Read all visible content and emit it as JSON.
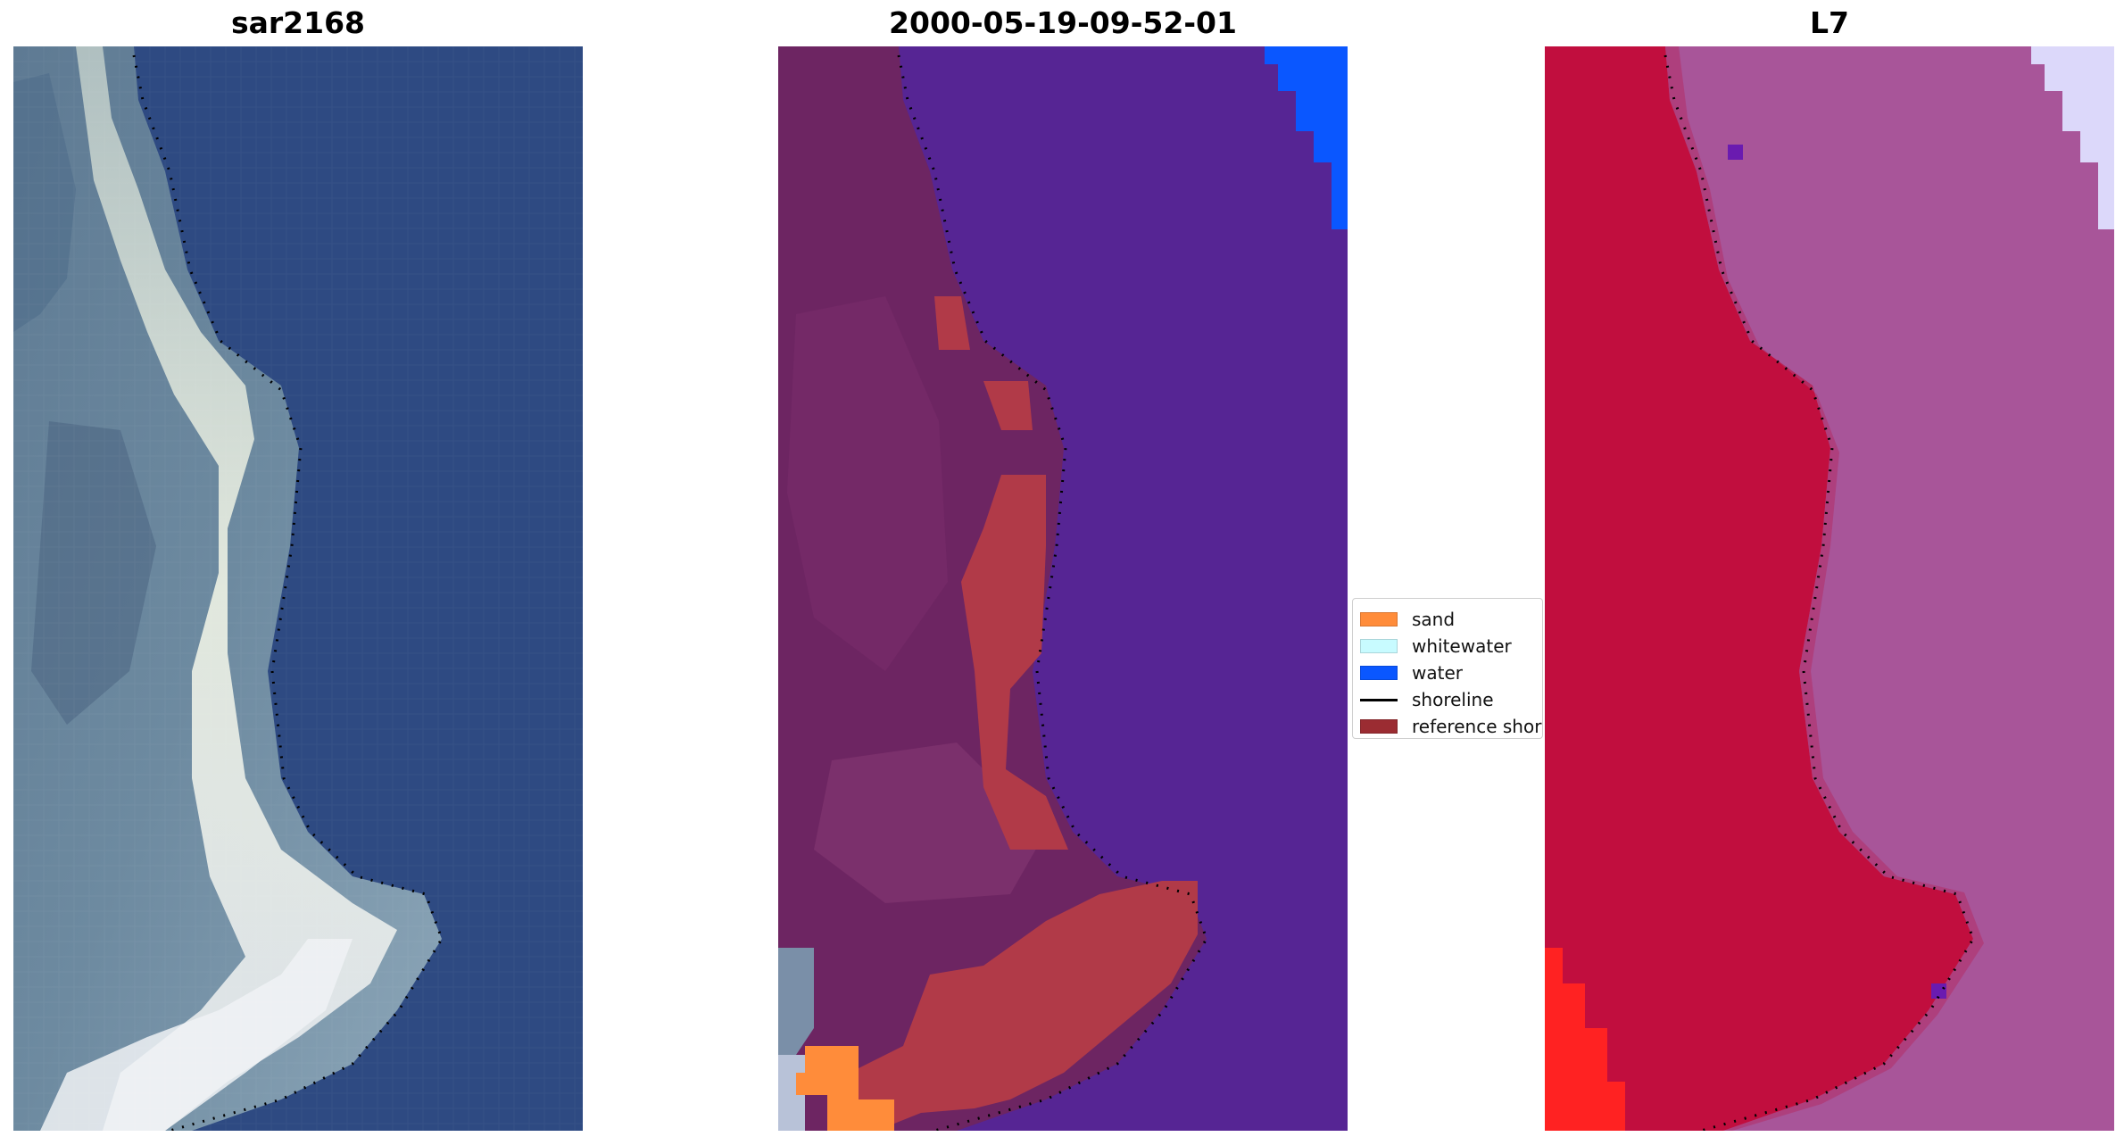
{
  "panels": {
    "left_title": "sar2168",
    "middle_title": "2000-05-19-09-52-01",
    "right_title": "L7"
  },
  "legend": {
    "items": [
      {
        "label": "sand",
        "color": "#ff8c3a",
        "kind": "patch"
      },
      {
        "label": "whitewater",
        "color": "#c8fbff",
        "kind": "patch"
      },
      {
        "label": "water",
        "color": "#0a57ff",
        "kind": "patch"
      },
      {
        "label": "shoreline",
        "color": "#000000",
        "kind": "line"
      },
      {
        "label": "reference shoreline",
        "color": "#9b2c32",
        "kind": "patch"
      }
    ]
  },
  "colors": {
    "rgb_water": "#2e4a82",
    "rgb_land": "#7e93a3",
    "rgb_bright": "#e6ecdc",
    "class_water": "#562594",
    "class_land": "#6d2562",
    "class_sand_buffer": "#b13a48",
    "class_water_corner": "#0a57ff",
    "index_land": "#c10e3e",
    "index_water": "#a85599",
    "index_corner": "#dcd8fa",
    "index_red_corner": "#ff2222"
  }
}
